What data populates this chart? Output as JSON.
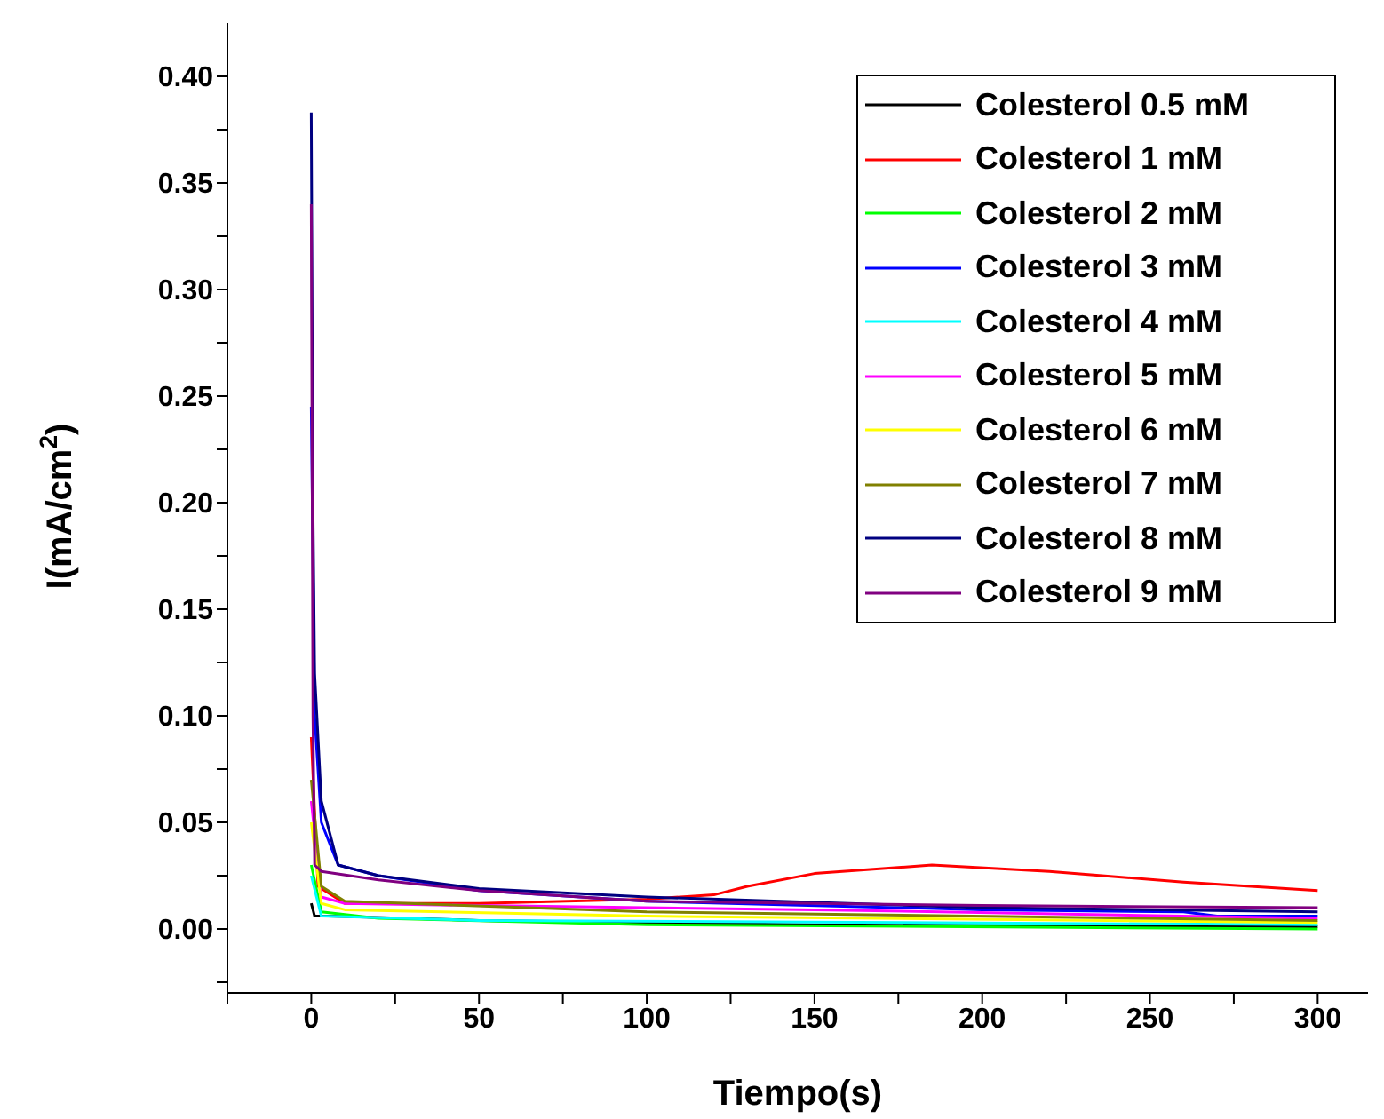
{
  "chart_data": {
    "type": "line",
    "xlabel": "Tiempo(s)",
    "ylabel": "I(mA/cm$^{2}$)",
    "xlim": [
      -25,
      315
    ],
    "ylim": [
      -0.03,
      0.425
    ],
    "xticks": [
      {
        "value": -25,
        "label": null
      },
      0,
      {
        "value": 25,
        "label": null
      },
      50,
      {
        "value": 75,
        "label": null
      },
      100,
      {
        "value": 125,
        "label": null
      },
      150,
      {
        "value": 175,
        "label": null
      },
      200,
      {
        "value": 225,
        "label": null
      },
      250,
      {
        "value": 275,
        "label": null
      },
      300
    ],
    "yticks": [
      {
        "value": -0.025,
        "label": null
      },
      {
        "value": 0,
        "label": "0.00"
      },
      {
        "value": 0.025,
        "label": null
      },
      {
        "value": 0.05,
        "label": "0.05"
      },
      {
        "value": 0.075,
        "label": null
      },
      {
        "value": 0.1,
        "label": "0.10"
      },
      {
        "value": 0.125,
        "label": null
      },
      {
        "value": 0.15,
        "label": "0.15"
      },
      {
        "value": 0.175,
        "label": null
      },
      {
        "value": 0.2,
        "label": "0.20"
      },
      {
        "value": 0.225,
        "label": null
      },
      {
        "value": 0.25,
        "label": "0.25"
      },
      {
        "value": 0.275,
        "label": null
      },
      {
        "value": 0.3,
        "label": "0.30"
      },
      {
        "value": 0.325,
        "label": null
      },
      {
        "value": 0.35,
        "label": "0.35"
      },
      {
        "value": 0.375,
        "label": null
      },
      {
        "value": 0.4,
        "label": "0.40"
      }
    ],
    "grid": false,
    "legend": "top right",
    "marker": "none",
    "line_style": "solid",
    "series": [
      {
        "name": "Colesterol 0.5 mM",
        "color": "#000000",
        "x": [
          0,
          1,
          5,
          50,
          150,
          300
        ],
        "values": [
          0.012,
          0.006,
          0.006,
          0.004,
          0.002,
          0.001
        ]
      },
      {
        "name": "Colesterol 1 mM",
        "color": "#ff0000",
        "x": [
          0,
          2,
          10,
          50,
          100,
          120,
          130,
          150,
          185,
          220,
          260,
          300
        ],
        "values": [
          0.09,
          0.02,
          0.012,
          0.012,
          0.014,
          0.016,
          0.02,
          0.026,
          0.03,
          0.027,
          0.022,
          0.018
        ]
      },
      {
        "name": "Colesterol 2 mM",
        "color": "#00ff00",
        "x": [
          0,
          3,
          20,
          100,
          300
        ],
        "values": [
          0.03,
          0.008,
          0.005,
          0.002,
          0.0
        ]
      },
      {
        "name": "Colesterol 3 mM",
        "color": "#0000ff",
        "x": [
          0,
          1,
          3,
          8,
          20,
          50,
          100,
          200,
          260,
          270,
          300
        ],
        "values": [
          0.245,
          0.1,
          0.05,
          0.03,
          0.025,
          0.018,
          0.013,
          0.009,
          0.008,
          0.006,
          0.006
        ]
      },
      {
        "name": "Colesterol 4 mM",
        "color": "#00ffff",
        "x": [
          0,
          3,
          50,
          300
        ],
        "values": [
          0.025,
          0.006,
          0.004,
          0.002
        ]
      },
      {
        "name": "Colesterol 5 mM",
        "color": "#ff00ff",
        "x": [
          0,
          3,
          10,
          50,
          150,
          300
        ],
        "values": [
          0.06,
          0.015,
          0.012,
          0.011,
          0.009,
          0.005
        ]
      },
      {
        "name": "Colesterol 6 mM",
        "color": "#ffff00",
        "x": [
          0,
          3,
          10,
          100,
          300
        ],
        "values": [
          0.05,
          0.012,
          0.009,
          0.006,
          0.003
        ]
      },
      {
        "name": "Colesterol 7 mM",
        "color": "#808000",
        "x": [
          0,
          3,
          10,
          100,
          300
        ],
        "values": [
          0.07,
          0.02,
          0.013,
          0.008,
          0.004
        ]
      },
      {
        "name": "Colesterol 8 mM",
        "color": "#000080",
        "x": [
          0,
          0.5,
          1,
          3,
          8,
          20,
          50,
          100,
          200,
          300
        ],
        "values": [
          0.383,
          0.2,
          0.12,
          0.06,
          0.03,
          0.025,
          0.019,
          0.015,
          0.01,
          0.008
        ]
      },
      {
        "name": "Colesterol 9 mM",
        "color": "#800080",
        "x": [
          0,
          0.5,
          1,
          3,
          20,
          50,
          100,
          200,
          300
        ],
        "values": [
          0.34,
          0.1,
          0.03,
          0.027,
          0.023,
          0.018,
          0.013,
          0.011,
          0.01
        ]
      }
    ]
  }
}
